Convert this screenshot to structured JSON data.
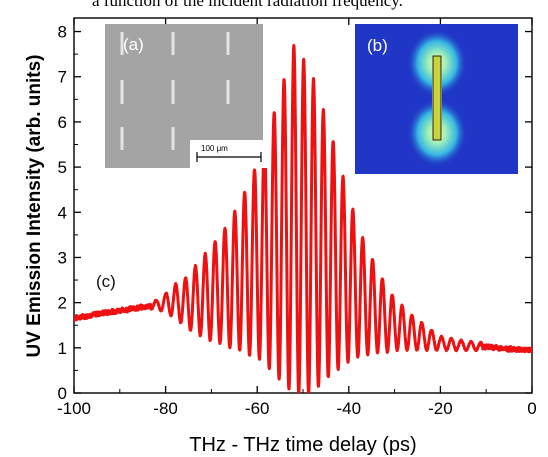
{
  "caption_fragment": "a function of the incident radiation frequency.",
  "chart_data": {
    "type": "line",
    "xlabel": "THz - THz time delay (ps)",
    "ylabel": "UV  Emission Intensity (arb. units)",
    "xlim": [
      -100,
      0
    ],
    "ylim": [
      0,
      8.3
    ],
    "xticks": [
      -100,
      -80,
      -60,
      -40,
      -20,
      0
    ],
    "yticks": [
      0,
      1,
      2,
      3,
      4,
      5,
      6,
      7,
      8
    ],
    "grid": false,
    "series": [
      {
        "color": "#ee1111",
        "x": [
          -100,
          -95,
          -90,
          -85,
          -82,
          -80,
          -78,
          -76,
          -74,
          -72,
          -70,
          -68,
          -66,
          -64,
          -62,
          -60,
          -58,
          -56,
          -54,
          -52,
          -50.5,
          -48,
          -46,
          -44,
          -42,
          -40,
          -38,
          -36,
          -34,
          -32,
          -30,
          -28,
          -26,
          -24,
          -22,
          -20,
          -15,
          -10,
          -5,
          0
        ],
        "upper": [
          1.65,
          1.75,
          1.85,
          1.95,
          2.05,
          2.2,
          2.4,
          2.5,
          2.75,
          3.0,
          3.25,
          3.5,
          3.8,
          4.2,
          4.6,
          5.1,
          5.7,
          6.3,
          7.0,
          7.7,
          7.5,
          7.05,
          6.4,
          5.8,
          5.05,
          4.35,
          3.7,
          3.2,
          2.8,
          2.4,
          2.1,
          1.9,
          1.7,
          1.55,
          1.4,
          1.25,
          1.15,
          1.1,
          1.0,
          0.95
        ],
        "lower": [
          1.65,
          1.75,
          1.8,
          1.85,
          1.85,
          1.8,
          1.65,
          1.5,
          1.35,
          1.25,
          1.15,
          1.1,
          1.0,
          0.95,
          0.85,
          0.8,
          0.6,
          0.4,
          0.15,
          0.0,
          0.0,
          0.0,
          0.2,
          0.4,
          0.55,
          0.7,
          0.8,
          0.85,
          0.9,
          0.9,
          0.95,
          0.95,
          0.95,
          0.95,
          0.95,
          0.95,
          0.95,
          0.95,
          0.95,
          0.95
        ],
        "oscillation_period_ps": 2.15,
        "oscillation_start_ps": -82,
        "oscillation_end_ps": -16
      }
    ],
    "annotations": [
      {
        "text": "(c)"
      }
    ]
  },
  "inset_a": {
    "label": "(a)",
    "scalebar_label": "100 μm",
    "background_color": "#a4a4a4",
    "slit_color": "#e4e4e4"
  },
  "inset_b": {
    "label": "(b)",
    "background_color": "#1f36c6",
    "rod_color": "#c8d43a"
  }
}
